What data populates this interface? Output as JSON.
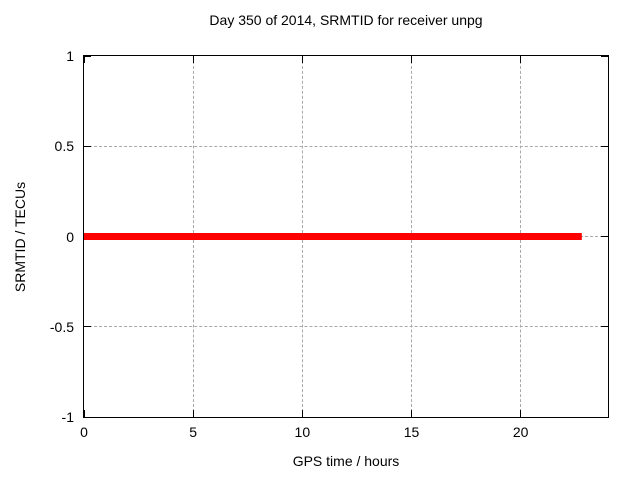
{
  "chart_data": {
    "type": "line",
    "title": "Day 350 of 2014, SRMTID for receiver unpg",
    "xlabel": "GPS time / hours",
    "ylabel": "SRMTID / TECUs",
    "xlim": [
      0,
      24
    ],
    "ylim": [
      -1,
      1
    ],
    "xticks": [
      0,
      5,
      10,
      15,
      20
    ],
    "yticks": [
      -1,
      -0.5,
      0,
      0.5,
      1
    ],
    "grid": true,
    "grid_color": "#a9a9a9",
    "border_color": "#000000",
    "background_color": "#ffffff",
    "legend": "none",
    "series": [
      {
        "name": "SRMTID",
        "color": "#ff0000",
        "line_width": 7,
        "x": [
          0,
          22.8
        ],
        "y": [
          0,
          0
        ]
      }
    ]
  }
}
